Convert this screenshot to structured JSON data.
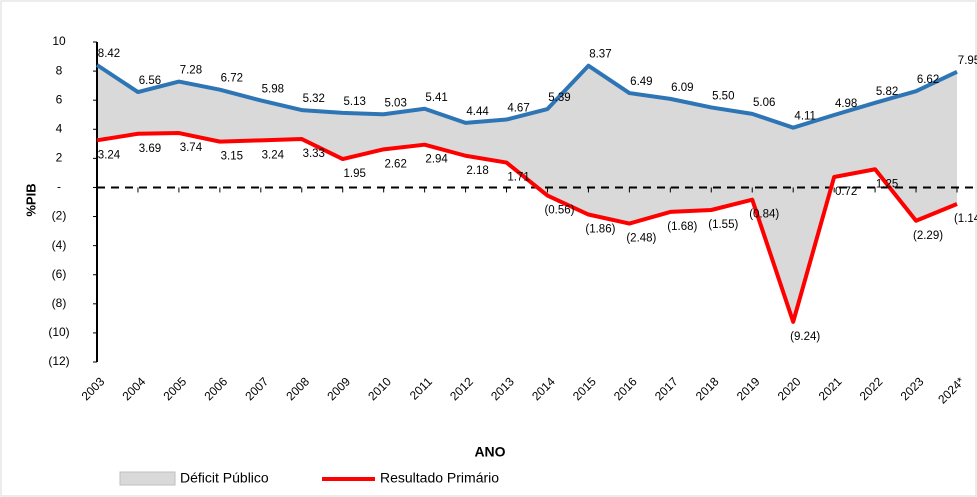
{
  "chart_data": {
    "type": "line",
    "y_label": "%PIB",
    "x_label": "ANO",
    "categories": [
      "2003",
      "2004",
      "2005",
      "2006",
      "2007",
      "2008",
      "2009",
      "2010",
      "2011",
      "2012",
      "2013",
      "2014",
      "2015",
      "2016",
      "2017",
      "2018",
      "2019",
      "2020",
      "2021",
      "2022",
      "2023",
      "2024*"
    ],
    "series": [
      {
        "name": "Déficit Público",
        "color": "#d9d9d9",
        "line_color": "#2e75b6",
        "values": [
          8.42,
          6.56,
          7.28,
          6.72,
          5.98,
          5.32,
          5.13,
          5.03,
          5.41,
          4.44,
          4.67,
          5.39,
          8.37,
          6.49,
          6.09,
          5.5,
          5.06,
          4.11,
          4.98,
          5.82,
          6.62,
          7.95
        ],
        "value_labels": [
          "8.42",
          "6.56",
          "7.28",
          "6.72",
          "5.98",
          "5.32",
          "5.13",
          "5.03",
          "5.41",
          "4.44",
          "4.67",
          "5.39",
          "8.37",
          "6.49",
          "6.09",
          "5.50",
          "5.06",
          "4.11",
          "4.98",
          "5.82",
          "6.62",
          "7.95"
        ]
      },
      {
        "name": "Resultado Primário",
        "color": "#ff0000",
        "values": [
          3.24,
          3.69,
          3.74,
          3.15,
          3.24,
          3.33,
          1.95,
          2.62,
          2.94,
          2.18,
          1.71,
          -0.56,
          -1.86,
          -2.48,
          -1.68,
          -1.55,
          -0.84,
          -9.24,
          0.72,
          1.25,
          -2.29,
          -1.14
        ],
        "value_labels": [
          "3.24",
          "3.69",
          "3.74",
          "3.15",
          "3.24",
          "3.33",
          "1.95",
          "2.62",
          "2.94",
          "2.18",
          "1.71",
          "(0.56)",
          "(1.86)",
          "(2.48)",
          "(1.68)",
          "(1.55)",
          "(0.84)",
          "(9.24)",
          "0.72",
          "1.25",
          "(2.29)",
          "(1.14)"
        ]
      }
    ],
    "ylim": [
      -12,
      10
    ],
    "yticks": [
      10,
      8,
      6,
      4,
      2,
      {
        "value": 0,
        "label": "-"
      },
      {
        "value": -2,
        "label": "(2)"
      },
      {
        "value": -4,
        "label": "(4)"
      },
      {
        "value": -6,
        "label": "(6)"
      },
      {
        "value": -8,
        "label": "(8)"
      },
      {
        "value": -10,
        "label": "(10)"
      },
      {
        "value": -12,
        "label": "(12)"
      }
    ],
    "zero_line": true
  }
}
